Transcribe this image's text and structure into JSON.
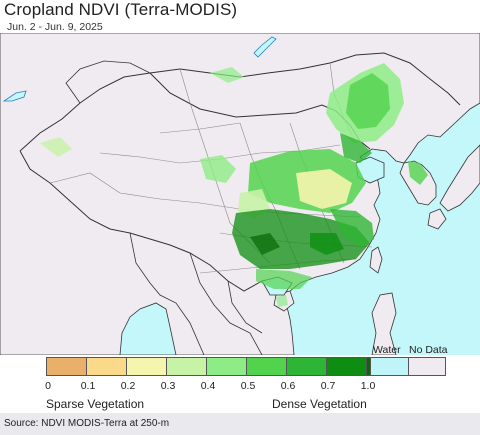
{
  "header": {
    "title": "Cropland NDVI (Terra-MODIS)",
    "subtitle": "Jun. 2 - Jun. 9, 2025"
  },
  "legend": {
    "classes": [
      {
        "color": "#e8b06a"
      },
      {
        "color": "#fbd98a"
      },
      {
        "color": "#f5f5ae"
      },
      {
        "color": "#c7f3a6"
      },
      {
        "color": "#8eec86"
      },
      {
        "color": "#52d34e"
      },
      {
        "color": "#2fb535"
      },
      {
        "color": "#0d8e12"
      },
      {
        "color": "#066806"
      }
    ],
    "ticks": [
      "0",
      "0.1",
      "0.2",
      "0.3",
      "0.4",
      "0.5",
      "0.6",
      "0.7",
      "1.0"
    ],
    "water": {
      "label": "Water",
      "color": "#bff5f8"
    },
    "nodata": {
      "label": "No Data",
      "color": "#efebf0"
    },
    "low_label": "Sparse Vegetation",
    "high_label": "Dense Vegetation"
  },
  "map": {
    "land_color": "#efebf0",
    "ocean_color": "#c4f7fa",
    "border_color": "#333333",
    "province_color": "#8a8a8a"
  },
  "footer": {
    "source": "Source: NDVI MODIS-Terra at 250-m"
  }
}
